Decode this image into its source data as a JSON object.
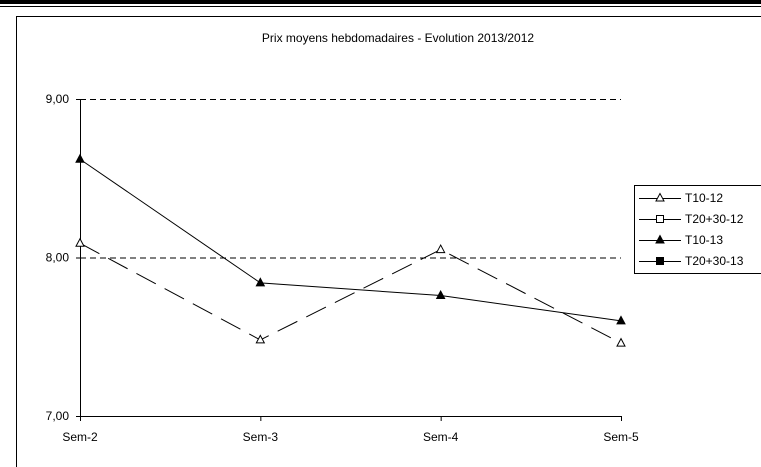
{
  "chart_data": {
    "type": "line",
    "title": "Prix moyens hebdomadaires - Evolution  2013/2012",
    "xlabel": "",
    "ylabel": "",
    "categories": [
      "Sem-2",
      "Sem-3",
      "Sem-4",
      "Sem-5"
    ],
    "y_ticks": [
      "7,00",
      "8,00",
      "9,00"
    ],
    "ylim": [
      7,
      9
    ],
    "grid": "horizontal dashed at 8,00 and 9,00",
    "legend_position": "right",
    "series": [
      {
        "name": "T10-12",
        "marker": "open-triangle",
        "line": "dashed",
        "color": "#000000",
        "values": [
          8.09,
          7.48,
          8.05,
          7.46
        ]
      },
      {
        "name": "T20+30-12",
        "marker": "open-square",
        "line": "solid",
        "color": "#000000",
        "values": [
          null,
          null,
          null,
          null
        ]
      },
      {
        "name": "T10-13",
        "marker": "filled-triangle",
        "line": "solid",
        "color": "#000000",
        "values": [
          8.62,
          7.84,
          7.76,
          7.6
        ]
      },
      {
        "name": "T20+30-13",
        "marker": "filled-square",
        "line": "solid",
        "color": "#000000",
        "values": [
          null,
          null,
          null,
          null
        ]
      }
    ]
  }
}
